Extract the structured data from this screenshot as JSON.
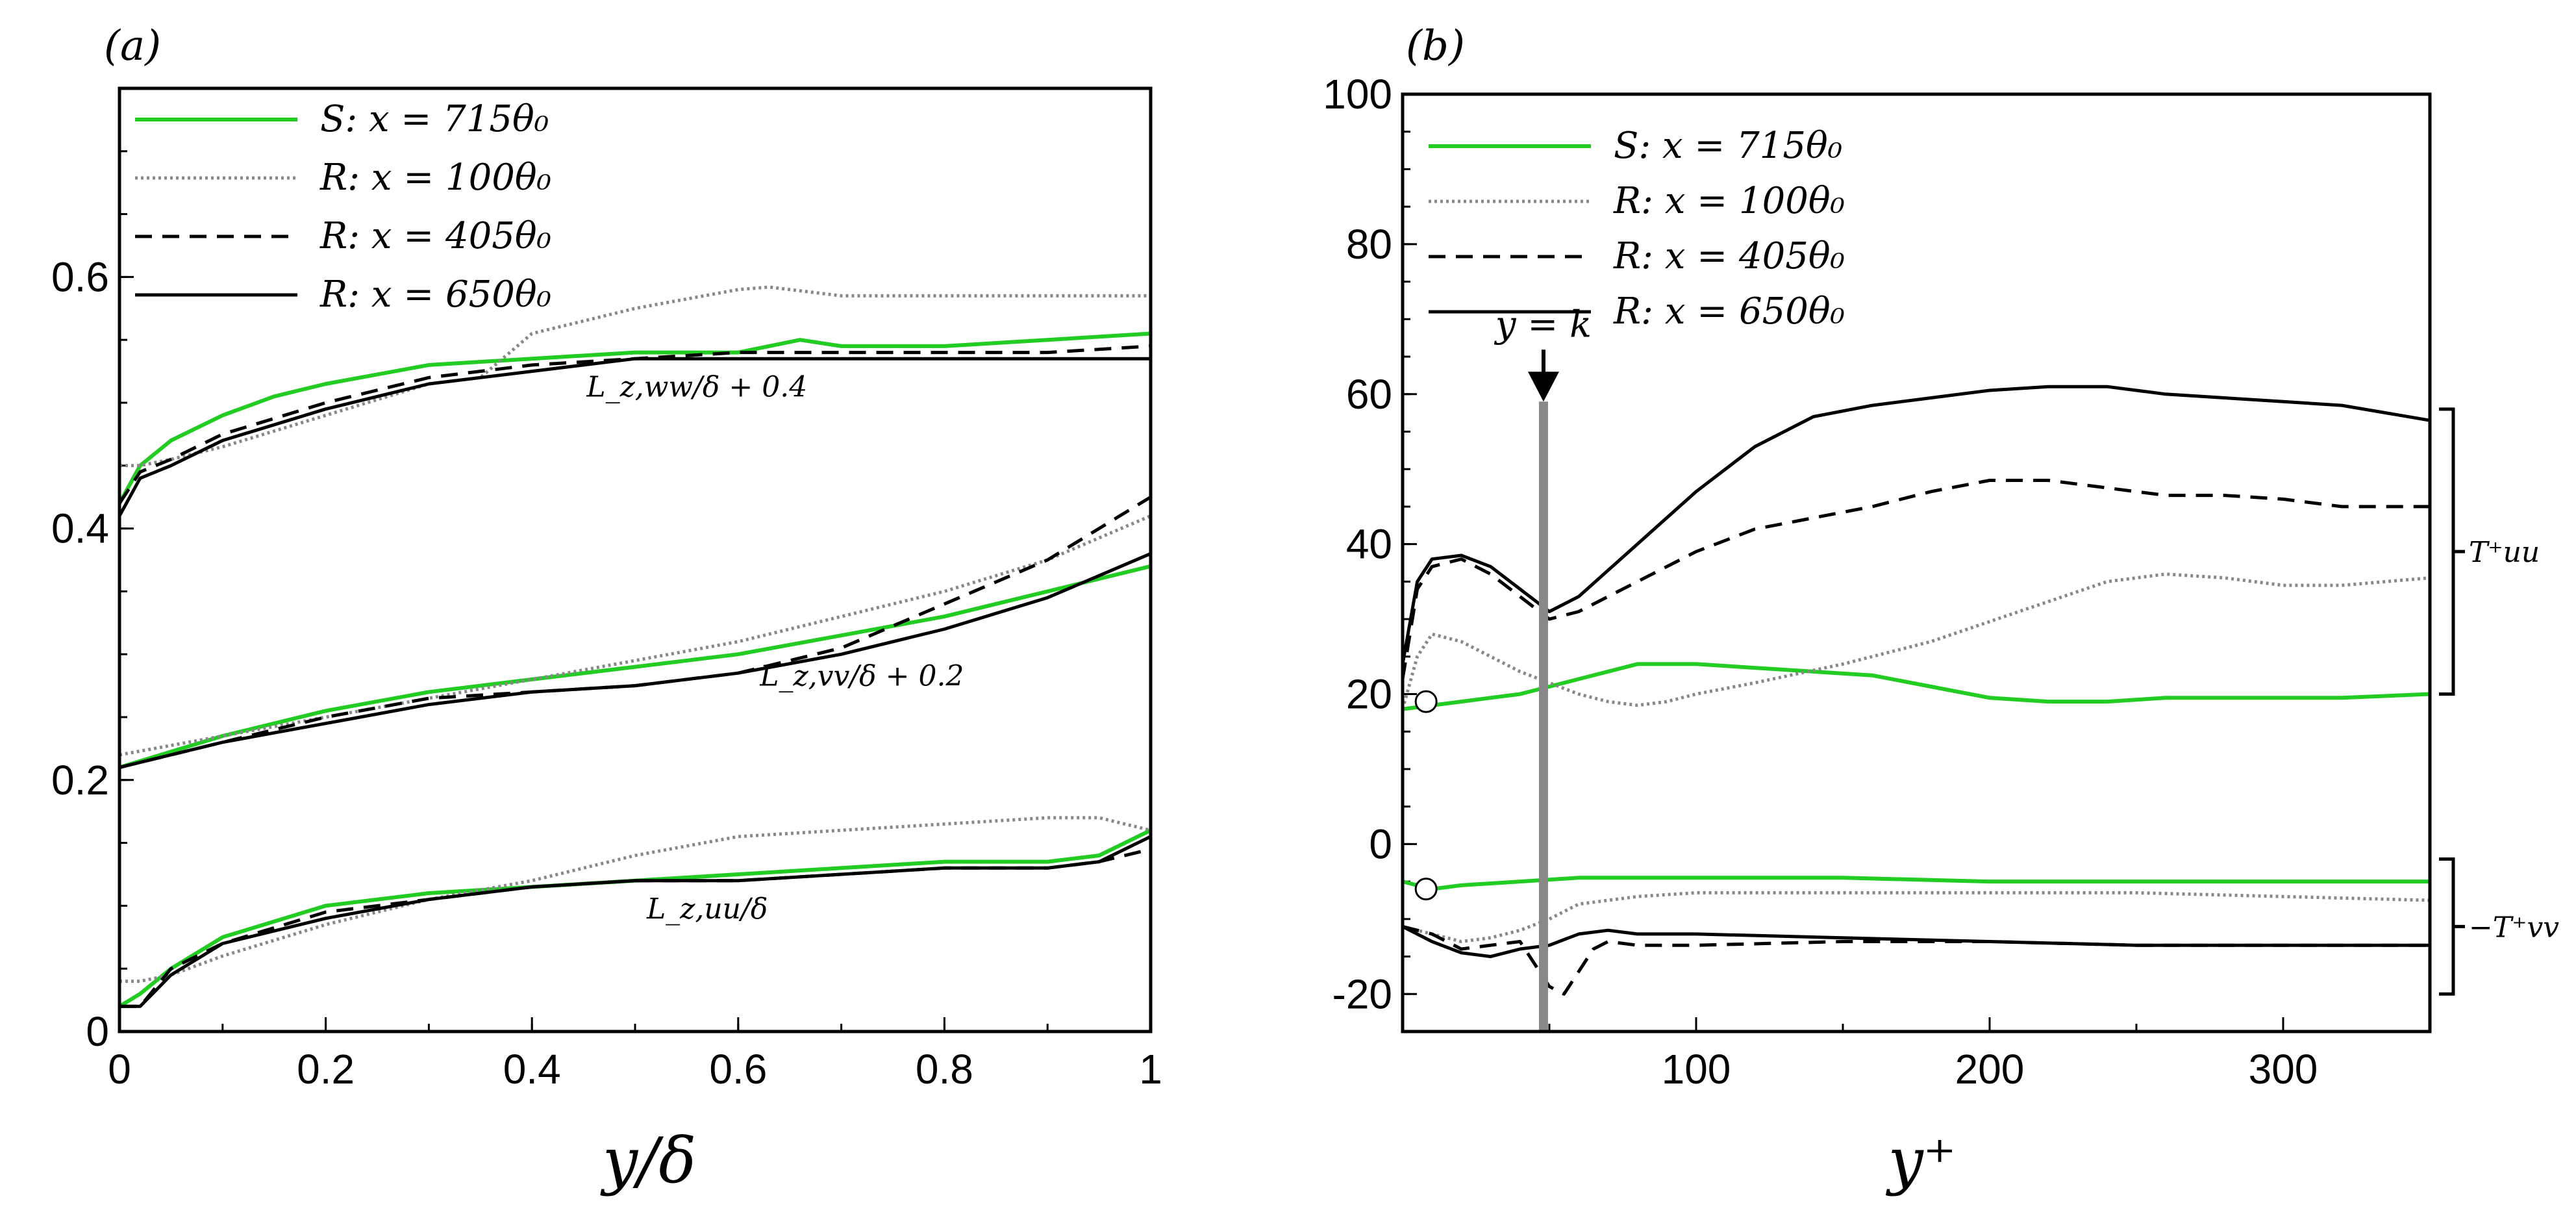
{
  "colors": {
    "S": "#22cc22",
    "R_dotted": "#888888",
    "R": "#000000",
    "marker": "#ffffff"
  },
  "chart_data": [
    {
      "type": "line",
      "panel_label": "(a)",
      "xlabel": "y/δ",
      "ylabel": "",
      "xlim": [
        0,
        1
      ],
      "ylim": [
        0,
        0.75
      ],
      "xticks": [
        0,
        0.2,
        0.4,
        0.6,
        0.8,
        1
      ],
      "xtick_labels": [
        "0",
        "0.2",
        "0.4",
        "0.6",
        "0.8",
        "1"
      ],
      "yticks": [
        0,
        0.2,
        0.4,
        0.6
      ],
      "ytick_labels": [
        "0",
        "0.2",
        "0.4",
        "0.6"
      ],
      "legend": [
        {
          "key": "S",
          "label": "S: x = 715θ₀",
          "style": "solid-green"
        },
        {
          "key": "R100",
          "label": "R: x = 100θ₀",
          "style": "dotted-gray"
        },
        {
          "key": "R405",
          "label": "R: x = 405θ₀",
          "style": "dashed-black"
        },
        {
          "key": "R650",
          "label": "R: x = 650θ₀",
          "style": "solid-black"
        }
      ],
      "annotations": [
        {
          "text": "L_z,ww/δ + 0.4",
          "x": 0.56,
          "y": 0.505
        },
        {
          "text": "L_z,vv/δ + 0.2",
          "x": 0.72,
          "y": 0.275
        },
        {
          "text": "L_z,uu/δ",
          "x": 0.57,
          "y": 0.09
        }
      ],
      "groups": [
        {
          "name": "ww",
          "series": [
            {
              "key": "S",
              "style": "solid-green",
              "x": [
                0,
                0.02,
                0.05,
                0.1,
                0.15,
                0.2,
                0.3,
                0.4,
                0.5,
                0.6,
                0.66,
                0.7,
                0.8,
                0.9,
                1.0
              ],
              "y": [
                0.42,
                0.45,
                0.47,
                0.49,
                0.505,
                0.515,
                0.53,
                0.535,
                0.54,
                0.54,
                0.55,
                0.545,
                0.545,
                0.55,
                0.555
              ]
            },
            {
              "key": "R100",
              "style": "dotted-gray",
              "x": [
                0,
                0.02,
                0.05,
                0.1,
                0.2,
                0.3,
                0.35,
                0.4,
                0.5,
                0.6,
                0.63,
                0.7,
                0.8,
                0.9,
                1.0
              ],
              "y": [
                0.45,
                0.45,
                0.455,
                0.465,
                0.49,
                0.515,
                0.52,
                0.555,
                0.575,
                0.59,
                0.592,
                0.585,
                0.585,
                0.585,
                0.585
              ]
            },
            {
              "key": "R405",
              "style": "dashed-black",
              "x": [
                0,
                0.02,
                0.05,
                0.1,
                0.2,
                0.3,
                0.4,
                0.5,
                0.6,
                0.7,
                0.8,
                0.9,
                1.0
              ],
              "y": [
                0.42,
                0.445,
                0.455,
                0.475,
                0.5,
                0.52,
                0.53,
                0.535,
                0.54,
                0.54,
                0.54,
                0.54,
                0.545
              ]
            },
            {
              "key": "R650",
              "style": "solid-black",
              "x": [
                0,
                0.02,
                0.05,
                0.1,
                0.2,
                0.3,
                0.4,
                0.5,
                0.6,
                0.7,
                0.8,
                0.9,
                1.0
              ],
              "y": [
                0.41,
                0.44,
                0.45,
                0.47,
                0.495,
                0.515,
                0.525,
                0.535,
                0.535,
                0.535,
                0.535,
                0.535,
                0.535
              ]
            }
          ]
        },
        {
          "name": "vv",
          "series": [
            {
              "key": "S",
              "style": "solid-green",
              "x": [
                0,
                0.1,
                0.2,
                0.3,
                0.4,
                0.5,
                0.6,
                0.7,
                0.8,
                0.9,
                1.0
              ],
              "y": [
                0.21,
                0.235,
                0.255,
                0.27,
                0.28,
                0.29,
                0.3,
                0.315,
                0.33,
                0.35,
                0.37
              ]
            },
            {
              "key": "R100",
              "style": "dotted-gray",
              "x": [
                0,
                0.1,
                0.2,
                0.3,
                0.4,
                0.5,
                0.6,
                0.7,
                0.8,
                0.9,
                1.0
              ],
              "y": [
                0.22,
                0.235,
                0.25,
                0.265,
                0.28,
                0.295,
                0.31,
                0.33,
                0.35,
                0.375,
                0.41
              ]
            },
            {
              "key": "R405",
              "style": "dashed-black",
              "x": [
                0,
                0.1,
                0.2,
                0.3,
                0.4,
                0.5,
                0.6,
                0.7,
                0.8,
                0.9,
                1.0
              ],
              "y": [
                0.21,
                0.23,
                0.25,
                0.265,
                0.27,
                0.275,
                0.285,
                0.305,
                0.34,
                0.375,
                0.425
              ]
            },
            {
              "key": "R650",
              "style": "solid-black",
              "x": [
                0,
                0.1,
                0.2,
                0.3,
                0.4,
                0.5,
                0.6,
                0.7,
                0.8,
                0.9,
                1.0
              ],
              "y": [
                0.21,
                0.23,
                0.245,
                0.26,
                0.27,
                0.275,
                0.285,
                0.3,
                0.32,
                0.345,
                0.38
              ]
            }
          ]
        },
        {
          "name": "uu",
          "series": [
            {
              "key": "S",
              "style": "solid-green",
              "x": [
                0,
                0.02,
                0.05,
                0.1,
                0.2,
                0.3,
                0.4,
                0.5,
                0.6,
                0.7,
                0.8,
                0.9,
                0.95,
                1.0
              ],
              "y": [
                0.02,
                0.03,
                0.05,
                0.075,
                0.1,
                0.11,
                0.115,
                0.12,
                0.125,
                0.13,
                0.135,
                0.135,
                0.14,
                0.16
              ]
            },
            {
              "key": "R100",
              "style": "dotted-gray",
              "x": [
                0,
                0.02,
                0.05,
                0.1,
                0.2,
                0.3,
                0.4,
                0.5,
                0.6,
                0.7,
                0.8,
                0.9,
                0.95,
                1.0
              ],
              "y": [
                0.04,
                0.04,
                0.045,
                0.06,
                0.085,
                0.105,
                0.12,
                0.14,
                0.155,
                0.16,
                0.165,
                0.17,
                0.17,
                0.16
              ]
            },
            {
              "key": "R405",
              "style": "dashed-black",
              "x": [
                0,
                0.02,
                0.05,
                0.1,
                0.2,
                0.3,
                0.4,
                0.5,
                0.6,
                0.7,
                0.8,
                0.9,
                0.95,
                1.0
              ],
              "y": [
                0.02,
                0.02,
                0.05,
                0.07,
                0.095,
                0.105,
                0.115,
                0.12,
                0.12,
                0.125,
                0.13,
                0.13,
                0.135,
                0.145
              ]
            },
            {
              "key": "R650",
              "style": "solid-black",
              "x": [
                0,
                0.02,
                0.05,
                0.1,
                0.2,
                0.3,
                0.4,
                0.5,
                0.6,
                0.7,
                0.8,
                0.9,
                0.95,
                1.0
              ],
              "y": [
                0.02,
                0.02,
                0.045,
                0.07,
                0.09,
                0.105,
                0.115,
                0.12,
                0.12,
                0.125,
                0.13,
                0.13,
                0.135,
                0.155
              ]
            }
          ]
        }
      ]
    },
    {
      "type": "line",
      "panel_label": "(b)",
      "xlabel": "y⁺",
      "ylabel": "",
      "xlim": [
        0,
        350
      ],
      "ylim": [
        -25,
        100
      ],
      "xticks": [
        100,
        200,
        300
      ],
      "xtick_labels": [
        "100",
        "200",
        "300"
      ],
      "yticks": [
        -20,
        0,
        20,
        40,
        60,
        80,
        100
      ],
      "ytick_labels": [
        "-20",
        "0",
        "20",
        "40",
        "60",
        "80",
        "100"
      ],
      "legend": [
        {
          "key": "S",
          "label": "S: x = 715θ₀",
          "style": "solid-green"
        },
        {
          "key": "R100",
          "label": "R: x = 100θ₀",
          "style": "dotted-gray"
        },
        {
          "key": "R405",
          "label": "R: x = 405θ₀",
          "style": "dashed-black"
        },
        {
          "key": "R650",
          "label": "R: x = 650θ₀",
          "style": "solid-black"
        }
      ],
      "vline": {
        "x": 48,
        "label": "y = k",
        "label_y": 67
      },
      "markers": [
        {
          "x": 8,
          "y": 19
        },
        {
          "x": 8,
          "y": -6
        }
      ],
      "brackets": [
        {
          "label": "T⁺uu",
          "ymin": 20,
          "ymax": 58
        },
        {
          "label": "−T⁺vv",
          "ymin": -20,
          "ymax": -2
        }
      ],
      "groups": [
        {
          "name": "Tuu",
          "series": [
            {
              "key": "S",
              "style": "solid-green",
              "x": [
                0,
                20,
                40,
                60,
                80,
                100,
                120,
                140,
                160,
                180,
                200,
                220,
                240,
                260,
                280,
                300,
                320,
                350
              ],
              "y": [
                18,
                19,
                20,
                22,
                24,
                24,
                23.5,
                23,
                22.5,
                21,
                19.5,
                19,
                19,
                19.5,
                19.5,
                19.5,
                19.5,
                20
              ]
            },
            {
              "key": "R100",
              "style": "dotted-gray",
              "x": [
                0,
                5,
                10,
                20,
                30,
                40,
                50,
                60,
                70,
                80,
                90,
                100,
                120,
                150,
                180,
                210,
                240,
                260,
                280,
                300,
                320,
                350
              ],
              "y": [
                18,
                25,
                28,
                27,
                25,
                23,
                21.5,
                20,
                19,
                18.5,
                19,
                20,
                21.5,
                24,
                27,
                31,
                35,
                36,
                35.5,
                34.5,
                34.5,
                35.5
              ]
            },
            {
              "key": "R405",
              "style": "dashed-black",
              "x": [
                0,
                5,
                10,
                20,
                30,
                40,
                50,
                60,
                80,
                100,
                120,
                140,
                160,
                180,
                200,
                220,
                240,
                260,
                280,
                300,
                320,
                350
              ],
              "y": [
                22,
                34,
                37,
                38,
                36,
                33,
                30,
                31,
                35,
                39,
                42,
                43.5,
                45,
                47,
                48.5,
                48.5,
                47.5,
                46.5,
                46.5,
                46,
                45,
                45
              ]
            },
            {
              "key": "R650",
              "style": "solid-black",
              "x": [
                0,
                5,
                10,
                20,
                30,
                40,
                50,
                60,
                80,
                100,
                120,
                140,
                160,
                180,
                200,
                220,
                240,
                260,
                280,
                300,
                320,
                350
              ],
              "y": [
                24,
                35,
                38,
                38.5,
                37,
                34,
                31,
                33,
                40,
                47,
                53,
                57,
                58.5,
                59.5,
                60.5,
                61,
                61,
                60,
                59.5,
                59,
                58.5,
                56.5
              ]
            }
          ]
        },
        {
          "name": "Tvv",
          "series": [
            {
              "key": "S",
              "style": "solid-green",
              "x": [
                0,
                10,
                20,
                40,
                60,
                80,
                100,
                150,
                200,
                250,
                300,
                350
              ],
              "y": [
                -5,
                -6,
                -5.5,
                -5,
                -4.5,
                -4.5,
                -4.5,
                -4.5,
                -5,
                -5,
                -5,
                -5
              ]
            },
            {
              "key": "R100",
              "style": "dotted-gray",
              "x": [
                0,
                10,
                20,
                30,
                40,
                50,
                60,
                80,
                100,
                150,
                200,
                250,
                300,
                350
              ],
              "y": [
                -11,
                -12,
                -13,
                -12.5,
                -11.5,
                -10,
                -8,
                -7,
                -6.5,
                -6.5,
                -6.5,
                -6.5,
                -7,
                -7.5
              ]
            },
            {
              "key": "R405",
              "style": "dashed-black",
              "x": [
                0,
                10,
                20,
                30,
                40,
                50,
                55,
                60,
                65,
                70,
                80,
                100,
                150,
                200,
                250,
                300,
                350
              ],
              "y": [
                -11,
                -12,
                -14,
                -13.5,
                -13,
                -19,
                -20,
                -17,
                -14,
                -13,
                -13.5,
                -13.5,
                -13,
                -13,
                -13.5,
                -13.5,
                -13.5
              ]
            },
            {
              "key": "R650",
              "style": "solid-black",
              "x": [
                0,
                10,
                20,
                30,
                40,
                50,
                60,
                70,
                80,
                100,
                150,
                200,
                250,
                300,
                350
              ],
              "y": [
                -11,
                -13,
                -14.5,
                -15,
                -14,
                -13.5,
                -12,
                -11.5,
                -12,
                -12,
                -12.5,
                -13,
                -13.5,
                -13.5,
                -13.5
              ]
            }
          ]
        }
      ]
    }
  ]
}
